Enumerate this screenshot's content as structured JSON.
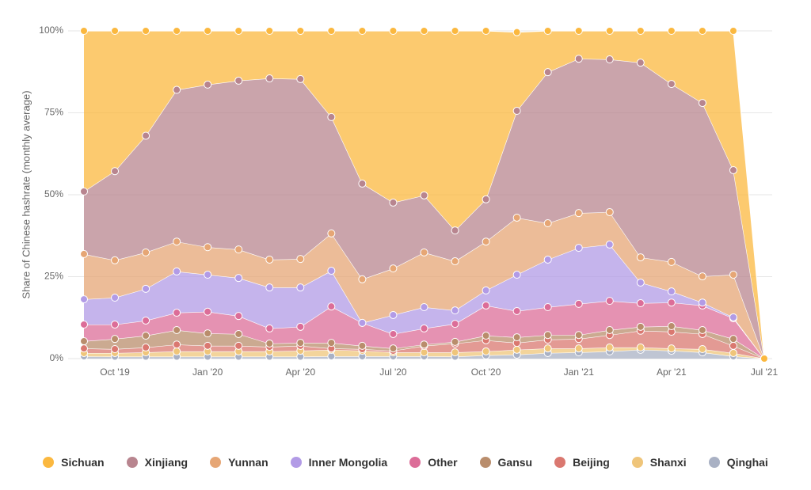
{
  "chart_data": {
    "type": "stacked-area",
    "y_label": "Share of Chinese hashrate (monthly average)",
    "categories": [
      null,
      "Oct '19",
      null,
      null,
      "Jan '20",
      null,
      null,
      "Apr '20",
      null,
      null,
      "Jul '20",
      null,
      null,
      "Oct '20",
      null,
      null,
      "Jan '21",
      null,
      null,
      "Apr '21",
      null,
      null,
      "Jul '21"
    ],
    "ylim": [
      0,
      100
    ],
    "yticks": [
      {
        "value": 0,
        "label": "0%"
      },
      {
        "value": 25,
        "label": "25%"
      },
      {
        "value": 50,
        "label": "50%"
      },
      {
        "value": 75,
        "label": "75%"
      },
      {
        "value": 100,
        "label": "100%"
      }
    ],
    "grid": true,
    "series": [
      {
        "name": "Sichuan",
        "color": "#fbb83f",
        "values": [
          49,
          42.8,
          32,
          18,
          16.4,
          15.2,
          14.5,
          14.7,
          26.3,
          46.6,
          52.4,
          50.2,
          60.9,
          51.4,
          24,
          12.6,
          8.5,
          8.7,
          9.7,
          16.2,
          22,
          42.5,
          0
        ]
      },
      {
        "name": "Xinjiang",
        "color": "#b8858f",
        "values": [
          19.1,
          27.2,
          35.6,
          46.3,
          49.6,
          51.5,
          55.3,
          54.9,
          35.5,
          29.2,
          20.1,
          17.4,
          9.4,
          12.9,
          32.6,
          46.1,
          47.1,
          46.6,
          59.4,
          54.3,
          52.9,
          31.9,
          0
        ]
      },
      {
        "name": "Yunnan",
        "color": "#e6a675",
        "values": [
          13.8,
          11.4,
          11.1,
          9.1,
          8.4,
          8.7,
          8.5,
          8.7,
          11.4,
          13.3,
          14.2,
          16.7,
          15,
          14.9,
          17.4,
          11.1,
          10.6,
          9.9,
          7.7,
          9,
          8,
          13,
          0
        ]
      },
      {
        "name": "Inner Mongolia",
        "color": "#b29be6",
        "values": [
          7.7,
          8.2,
          9.7,
          12.6,
          11.3,
          11.6,
          12.5,
          12,
          10.9,
          0,
          5.8,
          6.5,
          4.1,
          4.6,
          11.1,
          14.5,
          17.1,
          17.2,
          6.3,
          3.4,
          0.9,
          0.3,
          0
        ]
      },
      {
        "name": "Other",
        "color": "#dc6d98",
        "values": [
          5.1,
          4.4,
          4.6,
          5.3,
          6.6,
          5.5,
          4.6,
          4.9,
          11.1,
          7,
          4.4,
          4.9,
          5.5,
          9.2,
          8,
          8.5,
          9.5,
          8.9,
          7.2,
          7.2,
          7.5,
          6.3,
          0
        ]
      },
      {
        "name": "Gansu",
        "color": "#b98d6c",
        "values": [
          2.2,
          3.1,
          3.6,
          4.4,
          3.8,
          3.6,
          1,
          0.9,
          1.7,
          1,
          0.7,
          0.4,
          0.5,
          1.4,
          1.7,
          1.4,
          1.2,
          1.5,
          1.2,
          1.7,
          1.2,
          2.1,
          0
        ]
      },
      {
        "name": "Beijing",
        "color": "#da7870",
        "values": [
          1.4,
          1.2,
          1.5,
          2.1,
          1.7,
          1.7,
          1.4,
          1.5,
          0.4,
          0.5,
          0.5,
          2,
          2.7,
          3.4,
          2.1,
          2.7,
          2.9,
          3.8,
          5.1,
          5.1,
          4.6,
          2.2,
          0
        ]
      },
      {
        "name": "Shanxi",
        "color": "#efc57a",
        "values": [
          1,
          1.1,
          1.3,
          1.6,
          1.6,
          1.6,
          1.6,
          1.8,
          2,
          1.7,
          1.2,
          1.2,
          1.3,
          1.2,
          1.5,
          1.4,
          1.2,
          1.2,
          0.7,
          0.7,
          1,
          1,
          0
        ]
      },
      {
        "name": "Qinghai",
        "color": "#a9b1c4",
        "values": [
          0.7,
          0.6,
          0.6,
          0.6,
          0.6,
          0.6,
          0.6,
          0.6,
          0.7,
          0.7,
          0.7,
          0.7,
          0.6,
          1,
          1.2,
          1.7,
          1.9,
          2.2,
          2.7,
          2.4,
          1.9,
          0.7,
          0
        ]
      }
    ]
  }
}
